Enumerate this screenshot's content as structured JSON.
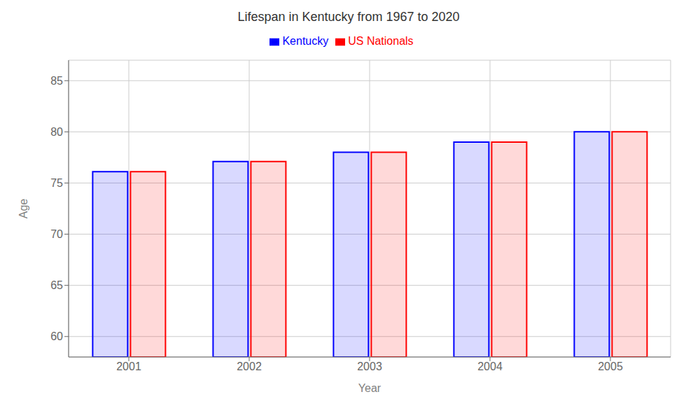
{
  "chart_data": {
    "type": "bar",
    "title": "Lifespan in Kentucky from 1967 to 2020",
    "x_label": "Year",
    "y_label": "Age",
    "categories": [
      "2001",
      "2002",
      "2003",
      "2004",
      "2005"
    ],
    "series": [
      {
        "name": "Kentucky",
        "color": "#0000ff",
        "values": [
          76.1,
          77.1,
          78.0,
          79.0,
          80.0
        ]
      },
      {
        "name": "US Nationals",
        "color": "#ff0000",
        "values": [
          76.1,
          77.1,
          78.0,
          79.0,
          80.0
        ]
      }
    ],
    "ylim": [
      58,
      87
    ],
    "yticks": [
      60,
      65,
      70,
      75,
      80,
      85
    ],
    "grid": true,
    "legend": "top"
  }
}
